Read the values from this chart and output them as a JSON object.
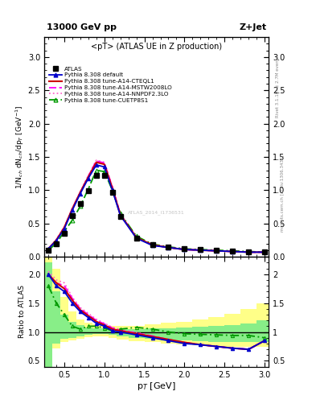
{
  "title_top": "13000 GeV pp",
  "title_right": "Z+Jet",
  "plot_title": "<pT> (ATLAS UE in Z production)",
  "ylabel_main": "1/N$_{ch}$ dN$_{ch}$/dp$_T$ [GeV$^{-1}$]",
  "ylabel_ratio": "Ratio to ATLAS",
  "xlabel": "p$_T$ [GeV]",
  "right_label_top": "Rivet 3.1.10, ≥ 2.7M events",
  "right_label_bottom": "mcplots.cern.ch [arXiv:1306.3436]",
  "watermark": "ATLAS_2014_I1736531",
  "atlas_x": [
    0.3,
    0.4,
    0.5,
    0.6,
    0.7,
    0.8,
    0.9,
    1.0,
    1.1,
    1.2,
    1.4,
    1.6,
    1.8,
    2.0,
    2.2,
    2.4,
    2.6,
    2.8,
    3.0
  ],
  "atlas_y": [
    0.1,
    0.2,
    0.35,
    0.62,
    0.8,
    0.99,
    1.22,
    1.22,
    0.97,
    0.6,
    0.28,
    0.18,
    0.15,
    0.12,
    0.11,
    0.1,
    0.09,
    0.08,
    0.07
  ],
  "py_x": [
    0.3,
    0.4,
    0.5,
    0.6,
    0.7,
    0.8,
    0.9,
    1.0,
    1.1,
    1.2,
    1.4,
    1.6,
    1.8,
    2.0,
    2.2,
    2.4,
    2.6,
    2.8,
    3.0
  ],
  "default_y": [
    0.12,
    0.24,
    0.42,
    0.7,
    0.95,
    1.18,
    1.38,
    1.35,
    1.0,
    0.62,
    0.28,
    0.17,
    0.14,
    0.11,
    0.1,
    0.09,
    0.08,
    0.07,
    0.07
  ],
  "cteql1_y": [
    0.12,
    0.25,
    0.44,
    0.72,
    0.97,
    1.2,
    1.42,
    1.39,
    1.03,
    0.63,
    0.29,
    0.18,
    0.14,
    0.11,
    0.1,
    0.09,
    0.08,
    0.07,
    0.07
  ],
  "mstw_y": [
    0.12,
    0.25,
    0.44,
    0.72,
    0.97,
    1.21,
    1.44,
    1.41,
    1.05,
    0.64,
    0.29,
    0.18,
    0.14,
    0.11,
    0.1,
    0.09,
    0.08,
    0.07,
    0.07
  ],
  "nnpdf_y": [
    0.12,
    0.26,
    0.45,
    0.73,
    0.98,
    1.22,
    1.45,
    1.42,
    1.06,
    0.64,
    0.29,
    0.18,
    0.14,
    0.11,
    0.1,
    0.09,
    0.08,
    0.07,
    0.07
  ],
  "cuetp_y": [
    0.1,
    0.2,
    0.38,
    0.55,
    0.76,
    1.02,
    1.3,
    1.28,
    1.0,
    0.65,
    0.31,
    0.19,
    0.15,
    0.12,
    0.11,
    0.1,
    0.09,
    0.08,
    0.07
  ],
  "colors": {
    "atlas": "#000000",
    "default": "#0000cc",
    "cteql1": "#cc0000",
    "mstw": "#ff00ff",
    "nnpdf": "#ff66cc",
    "cuetp": "#009900"
  },
  "band_x_edges": [
    0.25,
    0.35,
    0.45,
    0.55,
    0.65,
    0.75,
    0.85,
    0.95,
    1.05,
    1.15,
    1.3,
    1.5,
    1.7,
    1.9,
    2.1,
    2.3,
    2.5,
    2.7,
    2.9,
    3.05
  ],
  "green_low": [
    0.4,
    0.8,
    0.88,
    0.9,
    0.93,
    0.95,
    0.96,
    0.97,
    0.95,
    0.92,
    0.9,
    0.88,
    0.86,
    0.85,
    0.84,
    0.83,
    0.82,
    0.82,
    0.82
  ],
  "green_high": [
    2.2,
    1.7,
    1.3,
    1.18,
    1.12,
    1.08,
    1.07,
    1.06,
    1.05,
    1.05,
    1.05,
    1.06,
    1.07,
    1.08,
    1.09,
    1.1,
    1.12,
    1.15,
    1.2
  ],
  "yellow_low": [
    0.35,
    0.72,
    0.82,
    0.85,
    0.88,
    0.91,
    0.92,
    0.93,
    0.9,
    0.87,
    0.84,
    0.82,
    0.8,
    0.79,
    0.77,
    0.76,
    0.75,
    0.75,
    0.75
  ],
  "yellow_high": [
    3.0,
    2.1,
    1.6,
    1.35,
    1.22,
    1.16,
    1.13,
    1.11,
    1.1,
    1.1,
    1.11,
    1.13,
    1.16,
    1.18,
    1.22,
    1.26,
    1.32,
    1.4,
    1.5
  ],
  "ratio_default": [
    2.0,
    1.8,
    1.7,
    1.5,
    1.35,
    1.25,
    1.15,
    1.1,
    1.02,
    1.0,
    0.95,
    0.9,
    0.85,
    0.8,
    0.78,
    0.75,
    0.72,
    0.7,
    0.85
  ],
  "ratio_cteql1": [
    2.0,
    1.85,
    1.75,
    1.55,
    1.38,
    1.28,
    1.18,
    1.12,
    1.05,
    1.02,
    0.97,
    0.92,
    0.87,
    0.82,
    0.78,
    0.75,
    0.72,
    0.7,
    0.85
  ],
  "ratio_mstw": [
    2.0,
    1.85,
    1.8,
    1.58,
    1.4,
    1.3,
    1.2,
    1.14,
    1.07,
    1.03,
    0.98,
    0.93,
    0.87,
    0.82,
    0.78,
    0.75,
    0.72,
    0.7,
    0.85
  ],
  "ratio_nnpdf": [
    2.05,
    1.9,
    1.85,
    1.6,
    1.42,
    1.32,
    1.22,
    1.15,
    1.08,
    1.04,
    0.99,
    0.93,
    0.87,
    0.82,
    0.78,
    0.75,
    0.72,
    0.7,
    0.85
  ],
  "ratio_cuetp": [
    1.8,
    1.5,
    1.3,
    1.1,
    1.05,
    1.1,
    1.1,
    1.07,
    1.02,
    1.05,
    1.08,
    1.05,
    1.0,
    0.97,
    0.96,
    0.95,
    0.94,
    0.94,
    0.9
  ],
  "ylim_main": [
    0.0,
    3.3
  ],
  "ylim_ratio": [
    0.4,
    2.3
  ],
  "legend_labels": [
    "ATLAS",
    "Pythia 8.308 default",
    "Pythia 8.308 tune-A14-CTEQL1",
    "Pythia 8.308 tune-A14-MSTW2008LO",
    "Pythia 8.308 tune-A14-NNPDF2.3LO",
    "Pythia 8.308 tune-CUETP8S1"
  ]
}
